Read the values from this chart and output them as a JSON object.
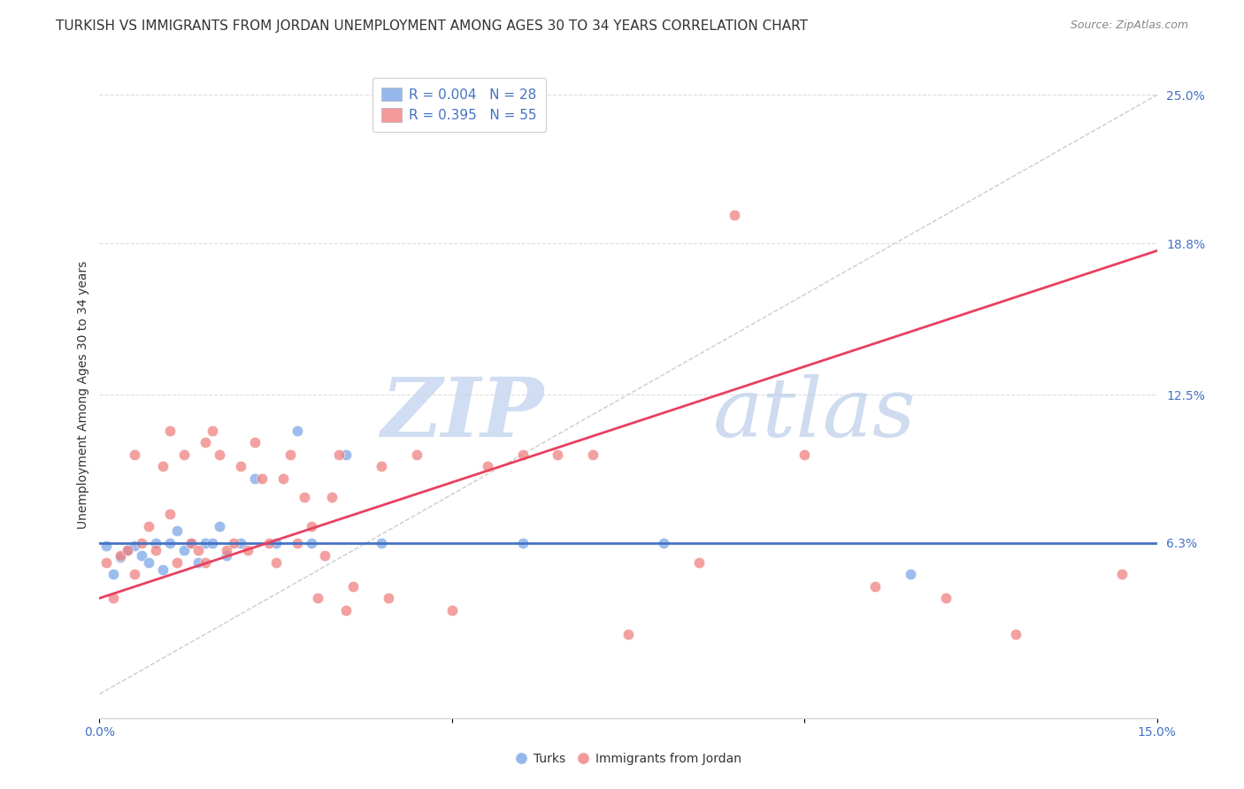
{
  "title": "TURKISH VS IMMIGRANTS FROM JORDAN UNEMPLOYMENT AMONG AGES 30 TO 34 YEARS CORRELATION CHART",
  "source": "Source: ZipAtlas.com",
  "ylabel": "Unemployment Among Ages 30 to 34 years",
  "xlim": [
    0.0,
    0.15
  ],
  "ylim": [
    -0.01,
    0.26
  ],
  "ytick_right_labels": [
    "25.0%",
    "18.8%",
    "12.5%",
    "6.3%"
  ],
  "ytick_right_values": [
    0.25,
    0.188,
    0.125,
    0.063
  ],
  "turks_color": "#7BA7E8",
  "jordan_color": "#F08080",
  "turks_line_color": "#4472C4",
  "jordan_line_color": "#E84060",
  "turks_R": 0.004,
  "turks_N": 28,
  "jordan_R": 0.395,
  "jordan_N": 55,
  "turks_x": [
    0.001,
    0.002,
    0.003,
    0.004,
    0.005,
    0.006,
    0.007,
    0.008,
    0.009,
    0.01,
    0.011,
    0.012,
    0.013,
    0.014,
    0.015,
    0.016,
    0.017,
    0.018,
    0.02,
    0.022,
    0.025,
    0.028,
    0.03,
    0.035,
    0.04,
    0.06,
    0.08,
    0.115
  ],
  "turks_y": [
    0.062,
    0.05,
    0.057,
    0.06,
    0.062,
    0.058,
    0.055,
    0.063,
    0.052,
    0.063,
    0.068,
    0.06,
    0.063,
    0.055,
    0.063,
    0.063,
    0.07,
    0.058,
    0.063,
    0.09,
    0.063,
    0.11,
    0.063,
    0.1,
    0.063,
    0.063,
    0.063,
    0.05
  ],
  "jordan_x": [
    0.001,
    0.002,
    0.003,
    0.004,
    0.005,
    0.005,
    0.006,
    0.007,
    0.008,
    0.009,
    0.01,
    0.01,
    0.011,
    0.012,
    0.013,
    0.014,
    0.015,
    0.015,
    0.016,
    0.017,
    0.018,
    0.019,
    0.02,
    0.021,
    0.022,
    0.023,
    0.024,
    0.025,
    0.026,
    0.027,
    0.028,
    0.029,
    0.03,
    0.031,
    0.032,
    0.033,
    0.034,
    0.035,
    0.036,
    0.04,
    0.041,
    0.045,
    0.05,
    0.055,
    0.06,
    0.065,
    0.07,
    0.075,
    0.085,
    0.09,
    0.1,
    0.11,
    0.12,
    0.13,
    0.145
  ],
  "jordan_y": [
    0.055,
    0.04,
    0.058,
    0.06,
    0.05,
    0.1,
    0.063,
    0.07,
    0.06,
    0.095,
    0.075,
    0.11,
    0.055,
    0.1,
    0.063,
    0.06,
    0.055,
    0.105,
    0.11,
    0.1,
    0.06,
    0.063,
    0.095,
    0.06,
    0.105,
    0.09,
    0.063,
    0.055,
    0.09,
    0.1,
    0.063,
    0.082,
    0.07,
    0.04,
    0.058,
    0.082,
    0.1,
    0.035,
    0.045,
    0.095,
    0.04,
    0.1,
    0.035,
    0.095,
    0.1,
    0.1,
    0.1,
    0.025,
    0.055,
    0.2,
    0.1,
    0.045,
    0.04,
    0.025,
    0.05
  ],
  "turks_line_y0": 0.063,
  "turks_line_y1": 0.063,
  "jordan_line_x0": 0.0,
  "jordan_line_y0": 0.04,
  "jordan_line_x1": 0.15,
  "jordan_line_y1": 0.185,
  "diag_color": "#CCCCCC",
  "grid_color": "#DDDDDD",
  "watermark_zip": "ZIP",
  "watermark_atlas": "atlas",
  "background_color": "#FFFFFF",
  "title_fontsize": 11,
  "axis_label_fontsize": 10,
  "tick_fontsize": 10,
  "legend_fontsize": 11,
  "marker_size": 80
}
